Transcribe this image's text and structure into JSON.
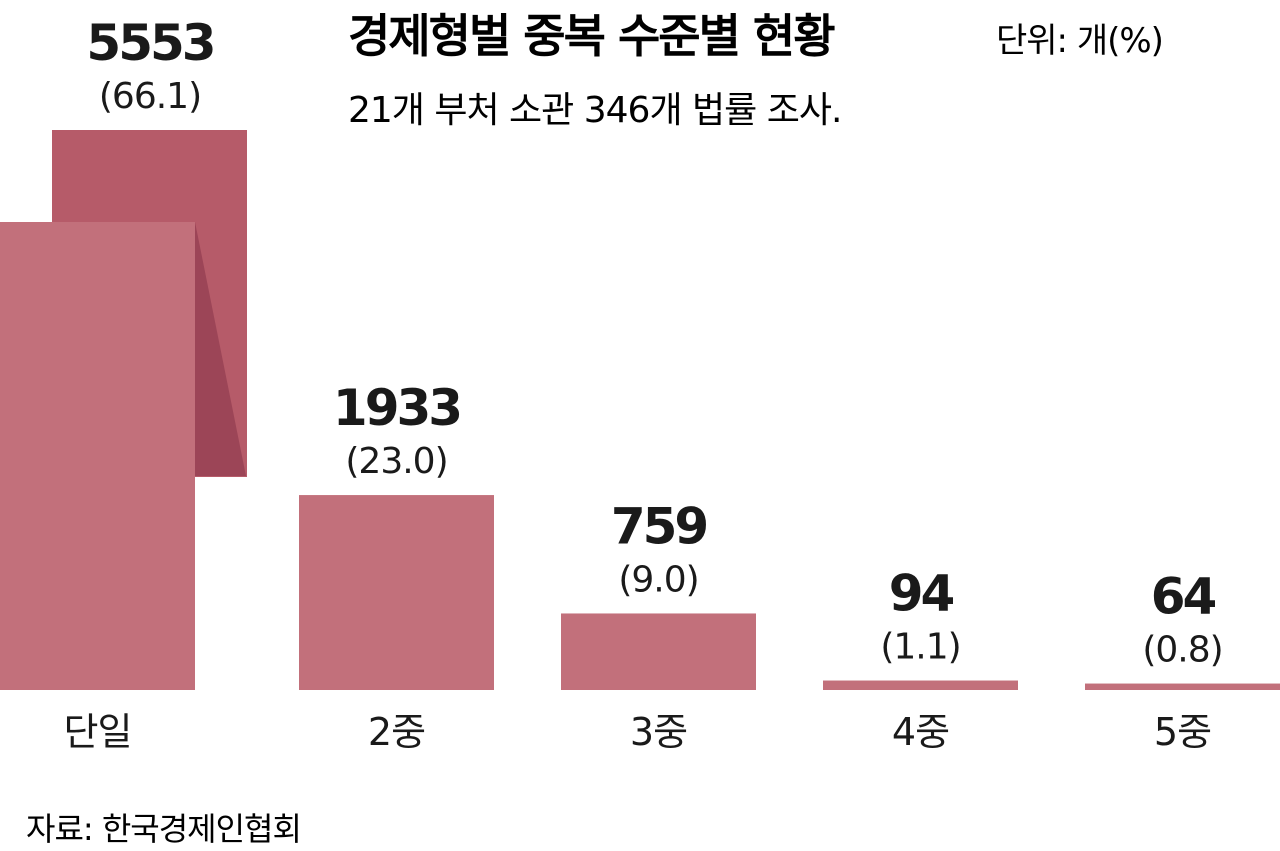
{
  "chart_data": {
    "type": "bar",
    "title": "경제형벌 중복 수준별 현황",
    "unit": "단위: 개(%)",
    "subtitle": "21개 부처 소관 346개 법률 조사.",
    "categories": [
      "단일",
      "2중",
      "3중",
      "4중",
      "5중"
    ],
    "values": [
      5553,
      1933,
      759,
      94,
      64
    ],
    "value_labels": [
      "5553",
      "1933",
      "759",
      "94",
      "64"
    ],
    "percent_labels": [
      "(66.1)",
      "(23.0)",
      "(9.0)",
      "(1.1)",
      "(0.8)"
    ],
    "percents": [
      66.1,
      23.0,
      9.0,
      1.1,
      0.8
    ],
    "grid": false,
    "legend": "none",
    "colors": {
      "bar": "#c2707b",
      "bar_back": "#b65b69",
      "bar_fold": "#9c4557",
      "text": "#1a1a1a"
    }
  },
  "source": "자료: 한국경제인협회"
}
